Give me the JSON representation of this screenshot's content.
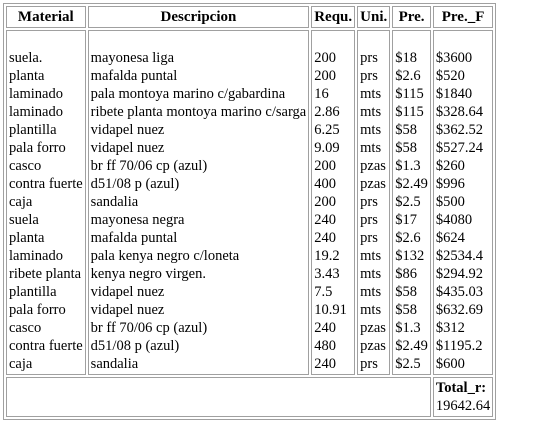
{
  "table": {
    "headers": [
      "Material",
      "Descripcion",
      "Requ.",
      "Uni.",
      "Pre.",
      "Pre._F"
    ],
    "rows": [
      [
        "suela.",
        "mayonesa liga",
        "200",
        "prs",
        "$18",
        "$3600"
      ],
      [
        "planta",
        "mafalda puntal",
        "200",
        "prs",
        "$2.6",
        "$520"
      ],
      [
        "laminado",
        "pala montoya marino c/gabardina",
        "16",
        "mts",
        "$115",
        "$1840"
      ],
      [
        "laminado",
        "ribete planta montoya marino c/sarga",
        "2.86",
        "mts",
        "$115",
        "$328.64"
      ],
      [
        "plantilla",
        "vidapel nuez",
        "6.25",
        "mts",
        "$58",
        "$362.52"
      ],
      [
        "pala forro",
        "vidapel nuez",
        "9.09",
        "mts",
        "$58",
        "$527.24"
      ],
      [
        "casco",
        "br ff 70/06 cp (azul)",
        "200",
        "pzas",
        "$1.3",
        "$260"
      ],
      [
        "contra fuerte",
        "d51/08 p (azul)",
        "400",
        "pzas",
        "$2.49",
        "$996"
      ],
      [
        "caja",
        "sandalia",
        "200",
        "prs",
        "$2.5",
        "$500"
      ],
      [
        "suela",
        "mayonesa negra",
        "240",
        "prs",
        "$17",
        "$4080"
      ],
      [
        "planta",
        "mafalda puntal",
        "240",
        "prs",
        "$2.6",
        "$624"
      ],
      [
        "laminado",
        "pala kenya negro c/loneta",
        "19.2",
        "mts",
        "$132",
        "$2534.4"
      ],
      [
        "ribete planta",
        "kenya negro virgen.",
        "3.43",
        "mts",
        "$86",
        "$294.92"
      ],
      [
        "plantilla",
        "vidapel nuez",
        "7.5",
        "mts",
        "$58",
        "$435.03"
      ],
      [
        "pala forro",
        "vidapel nuez",
        "10.91",
        "mts",
        "$58",
        "$632.69"
      ],
      [
        "casco",
        "br ff 70/06 cp (azul)",
        "240",
        "pzas",
        "$1.3",
        "$312"
      ],
      [
        "contra fuerte",
        "d51/08 p (azul)",
        "480",
        "pzas",
        "$2.49",
        "$1195.2"
      ],
      [
        "caja",
        "sandalia",
        "240",
        "prs",
        "$2.5",
        "$600"
      ]
    ],
    "total_label": "Total_r:",
    "total_value": "19642.64"
  }
}
